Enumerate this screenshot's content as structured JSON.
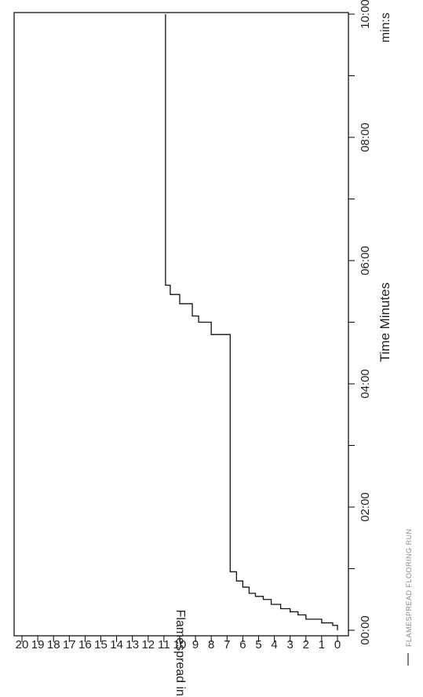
{
  "chart_data": {
    "type": "line",
    "xlabel": "Time Minutes",
    "x_unit_label": "min:s",
    "ylabel": "Flamespread in Feet",
    "legend_text": "FLAMESPREAD FLOORING RUN",
    "x_tick_labels": [
      "00:00",
      "02:00",
      "04:00",
      "06:00",
      "08:00",
      "10:00"
    ],
    "x_ticks_minutes": [
      0,
      1,
      2,
      3,
      4,
      5,
      6,
      7,
      8,
      9,
      10
    ],
    "y_tick_labels": [
      "0",
      "1",
      "2",
      "3",
      "4",
      "5",
      "6",
      "7",
      "8",
      "9",
      "10",
      "11",
      "12",
      "13",
      "14",
      "15",
      "16",
      "17",
      "18",
      "19",
      "20"
    ],
    "xlim": [
      0,
      10
    ],
    "ylim": [
      0,
      20
    ],
    "series": [
      {
        "x": [
          0,
          0.08,
          0.12,
          0.18,
          0.25,
          0.3,
          0.35,
          0.42,
          0.5,
          0.55,
          0.6,
          0.7,
          0.8,
          0.95,
          4.7,
          4.8,
          5.0,
          5.1,
          5.3,
          5.45,
          5.6,
          10.0
        ],
        "y": [
          0,
          0.3,
          1.0,
          2.0,
          2.5,
          3.0,
          3.6,
          4.2,
          4.7,
          5.2,
          5.6,
          6.0,
          6.4,
          6.8,
          6.8,
          8.0,
          8.8,
          9.2,
          10.0,
          10.6,
          10.9,
          10.9
        ],
        "step": true
      }
    ]
  }
}
